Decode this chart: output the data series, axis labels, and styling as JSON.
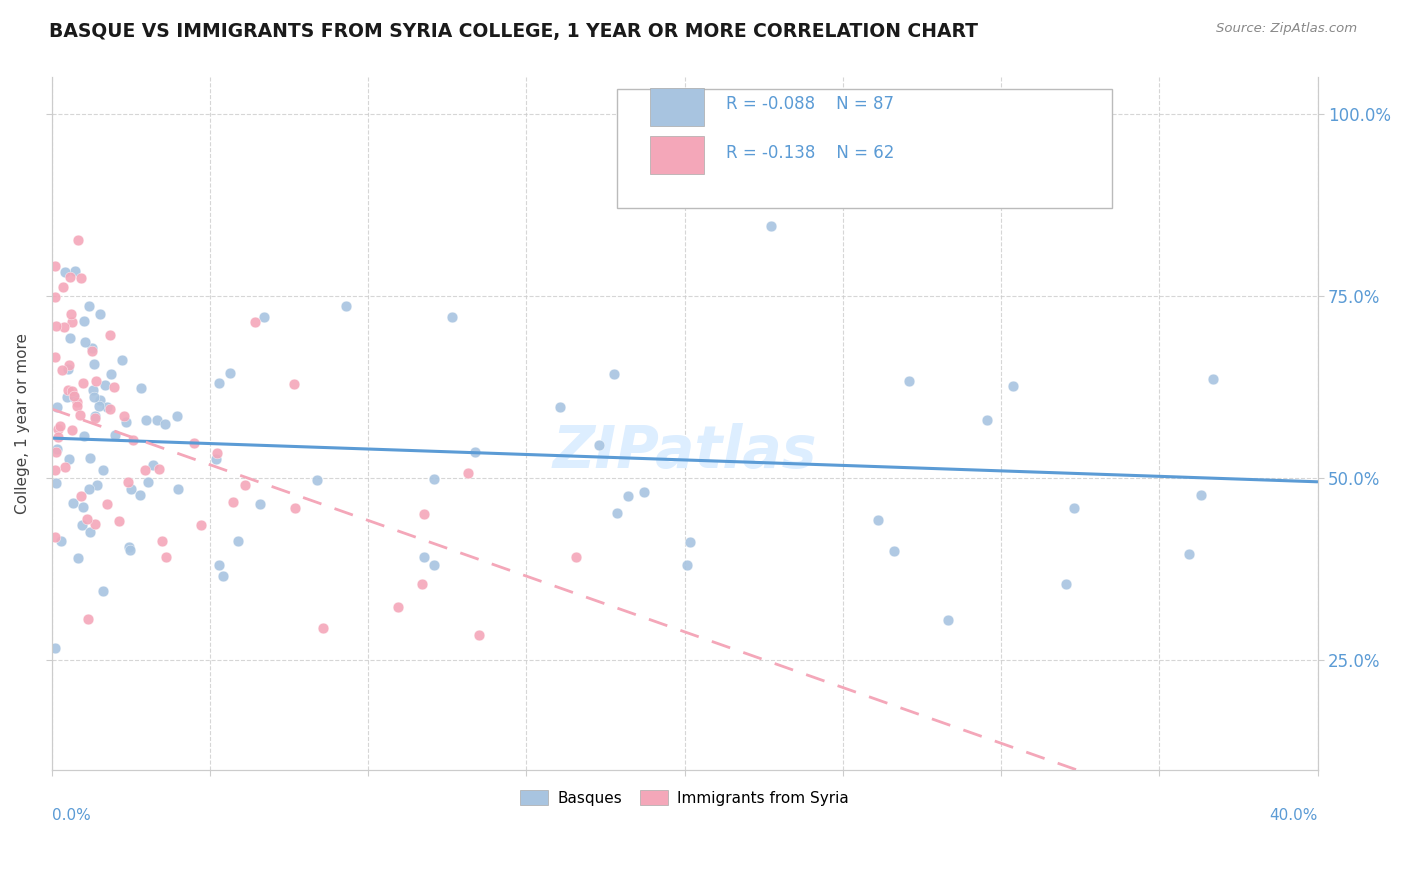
{
  "title": "BASQUE VS IMMIGRANTS FROM SYRIA COLLEGE, 1 YEAR OR MORE CORRELATION CHART",
  "source_text": "Source: ZipAtlas.com",
  "ylabel_label": "College, 1 year or more",
  "legend_label_blue": "Basques",
  "legend_label_pink": "Immigrants from Syria",
  "xmin": 0.0,
  "xmax": 0.4,
  "ymin": 0.1,
  "ymax": 1.05,
  "yticks": [
    0.25,
    0.5,
    0.75,
    1.0
  ],
  "R_blue": -0.088,
  "N_blue": 87,
  "R_pink": -0.138,
  "N_pink": 62,
  "blue_color": "#a8c4e0",
  "pink_color": "#f4a7b9",
  "blue_line_color": "#5b9bd5",
  "pink_line_color": "#f4a7b9",
  "tick_color": "#5b9bd5",
  "grid_color": "#cccccc",
  "watermark_color": "#ddeeff",
  "blue_line_y0": 0.555,
  "blue_line_y1": 0.495,
  "pink_line_y0": 0.595,
  "pink_line_y1": 0.335,
  "pink_line_x1": 0.17
}
